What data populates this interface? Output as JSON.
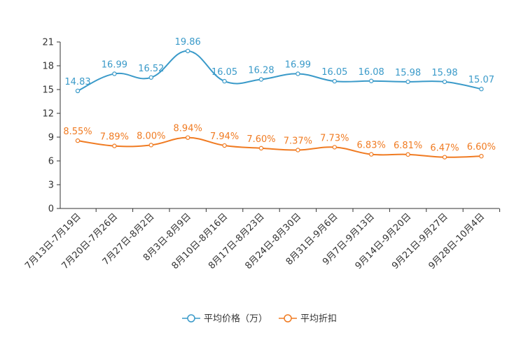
{
  "chart_data": {
    "type": "line",
    "title": "",
    "xlabel": "",
    "ylabel": "",
    "ylim": [
      0,
      21
    ],
    "yticks": [
      0,
      3,
      6,
      9,
      12,
      15,
      18,
      21
    ],
    "categories": [
      "7月13日-7月19日",
      "7月20日-7月26日",
      "7月27日-8月2日",
      "8月3日-8月9日",
      "8月10日-8月16日",
      "8月17日-8月23日",
      "8月24日-8月30日",
      "8月31日-9月6日",
      "9月7日-9月13日",
      "9月14日-9月20日",
      "9月21日-9月27日",
      "9月28日-10月4日"
    ],
    "series": [
      {
        "name": "平均价格（万）",
        "color": "#3a9ac9",
        "values": [
          14.83,
          16.99,
          16.52,
          19.86,
          16.05,
          16.28,
          16.99,
          16.05,
          16.08,
          15.98,
          15.98,
          15.07
        ],
        "labels": [
          "14.83",
          "16.99",
          "16.52",
          "19.86",
          "16.05",
          "16.28",
          "16.99",
          "16.05",
          "16.08",
          "15.98",
          "15.98",
          "15.07"
        ]
      },
      {
        "name": "平均折扣",
        "color": "#f07b22",
        "values": [
          8.55,
          7.89,
          8.0,
          8.94,
          7.94,
          7.6,
          7.37,
          7.73,
          6.83,
          6.81,
          6.47,
          6.6
        ],
        "labels": [
          "8.55%",
          "7.89%",
          "8.00%",
          "8.94%",
          "7.94%",
          "7.60%",
          "7.37%",
          "7.73%",
          "6.83%",
          "6.81%",
          "6.47%",
          "6.60%"
        ]
      }
    ],
    "legend_position": "bottom-center",
    "grid": false
  }
}
